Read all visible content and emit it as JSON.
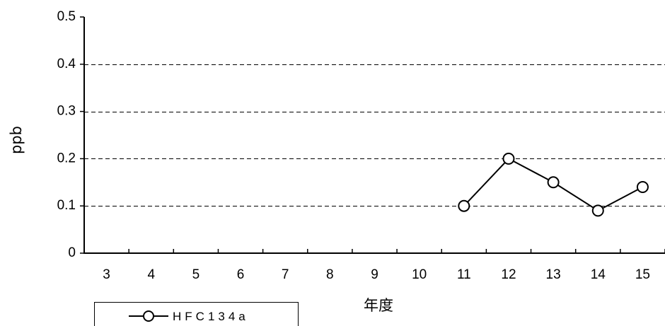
{
  "chart_data": {
    "type": "line",
    "categories": [
      "3",
      "4",
      "5",
      "6",
      "7",
      "8",
      "9",
      "10",
      "11",
      "12",
      "13",
      "14",
      "15"
    ],
    "series": [
      {
        "name": "HFC134a",
        "values": [
          null,
          null,
          null,
          null,
          null,
          null,
          null,
          null,
          0.1,
          0.2,
          0.15,
          0.09,
          0.14
        ]
      }
    ],
    "xlabel": "年度",
    "ylabel": "ppb",
    "ylim": [
      0,
      0.5
    ],
    "yticks": [
      "0",
      "0.1",
      "0.2",
      "0.3",
      "0.4",
      "0.5"
    ],
    "grid": "horizontal dashed",
    "legend_position": "bottom-left",
    "colors": {
      "line": "#000000",
      "marker_fill": "#ffffff",
      "grid": "#000000"
    }
  }
}
